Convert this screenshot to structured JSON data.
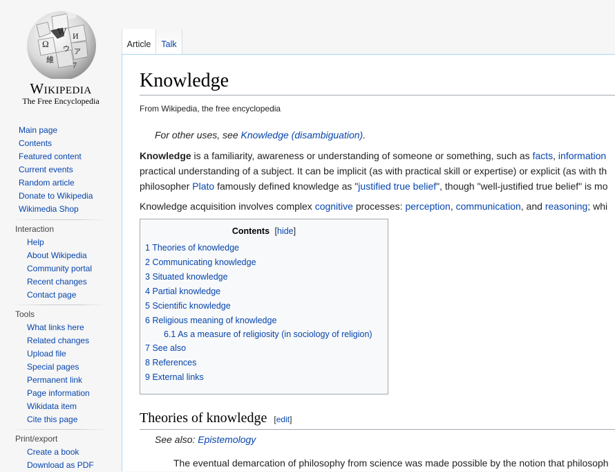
{
  "logo": {
    "wordmark": "Wikipedia",
    "tagline": "The Free Encyclopedia",
    "glyphs": [
      "W",
      "Ω",
      "И",
      "維",
      "ウ",
      "ア",
      "7"
    ]
  },
  "navigation": [
    "Main page",
    "Contents",
    "Featured content",
    "Current events",
    "Random article",
    "Donate to Wikipedia",
    "Wikimedia Shop"
  ],
  "portals": [
    {
      "title": "Interaction",
      "items": [
        "Help",
        "About Wikipedia",
        "Community portal",
        "Recent changes",
        "Contact page"
      ]
    },
    {
      "title": "Tools",
      "items": [
        "What links here",
        "Related changes",
        "Upload file",
        "Special pages",
        "Permanent link",
        "Page information",
        "Wikidata item",
        "Cite this page"
      ]
    },
    {
      "title": "Print/export",
      "items": [
        "Create a book",
        "Download as PDF"
      ]
    }
  ],
  "tabs": {
    "article": "Article",
    "talk": "Talk"
  },
  "article": {
    "title": "Knowledge",
    "site_sub": "From Wikipedia, the free encyclopedia",
    "hatnote": {
      "prefix": "For other uses, see ",
      "link": "Knowledge (disambiguation)",
      "suffix": "."
    },
    "p1": {
      "line1": {
        "bold": "Knowledge",
        "text": " is a familiarity, awareness or understanding of someone or something, such as ",
        "link1": "facts",
        "sep": ", ",
        "link2": "information"
      },
      "line2": "practical understanding of a subject. It can be implicit (as with practical skill or expertise) or explicit (as with th",
      "line3": {
        "pre": "philosopher ",
        "link1": "Plato",
        "mid": " famously defined knowledge as \"",
        "link2": "justified true belief",
        "post": "\", though \"well-justified true belief\" is mo"
      }
    },
    "p2": {
      "pre": "Knowledge acquisition involves complex ",
      "link1": "cognitive",
      "mid1": " processes: ",
      "link2": "perception",
      "sep1": ", ",
      "link3": "communication",
      "mid2": ", and ",
      "link4": "reasoning",
      "post": "; whi"
    },
    "toc": {
      "title": "Contents",
      "hide": "hide",
      "items": [
        {
          "num": "1",
          "text": "Theories of knowledge"
        },
        {
          "num": "2",
          "text": "Communicating knowledge"
        },
        {
          "num": "3",
          "text": "Situated knowledge"
        },
        {
          "num": "4",
          "text": "Partial knowledge"
        },
        {
          "num": "5",
          "text": "Scientific knowledge"
        },
        {
          "num": "6",
          "text": "Religious meaning of knowledge"
        },
        {
          "num": "6.1",
          "text": "As a measure of religiosity (in sociology of religion)"
        },
        {
          "num": "7",
          "text": "See also"
        },
        {
          "num": "8",
          "text": "References"
        },
        {
          "num": "9",
          "text": "External links"
        }
      ]
    },
    "section": {
      "title": "Theories of knowledge",
      "edit": "edit"
    },
    "see_also": {
      "prefix": "See also: ",
      "link": "Epistemology"
    },
    "p3": "The eventual demarcation of philosophy from science was made possible by the notion that philosoph"
  }
}
